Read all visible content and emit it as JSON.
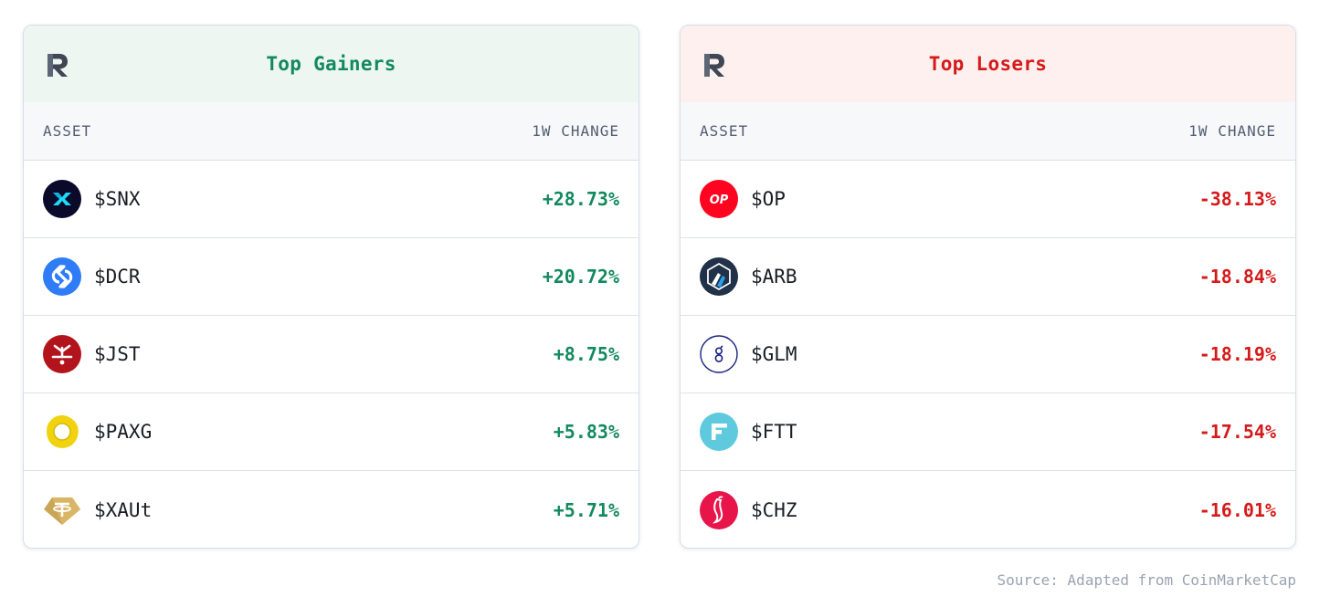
{
  "gainers": {
    "title": "Top Gainers",
    "asset_header": "ASSET",
    "change_header": "1W CHANGE",
    "accent_color": "#13895f",
    "header_bg": "#eef6f2",
    "rows": [
      {
        "symbol": "$SNX",
        "change": "+28.73%",
        "icon": "synthetix-icon"
      },
      {
        "symbol": "$DCR",
        "change": "+20.72%",
        "icon": "decred-icon"
      },
      {
        "symbol": "$JST",
        "change": "+8.75%",
        "icon": "just-icon"
      },
      {
        "symbol": "$PAXG",
        "change": "+5.83%",
        "icon": "pax-gold-icon"
      },
      {
        "symbol": "$XAUt",
        "change": "+5.71%",
        "icon": "tether-gold-icon"
      }
    ]
  },
  "losers": {
    "title": "Top Losers",
    "asset_header": "ASSET",
    "change_header": "1W CHANGE",
    "accent_color": "#d51a1a",
    "header_bg": "#fdf0ef",
    "rows": [
      {
        "symbol": "$OP",
        "change": "-38.13%",
        "icon": "optimism-icon"
      },
      {
        "symbol": "$ARB",
        "change": "-18.84%",
        "icon": "arbitrum-icon"
      },
      {
        "symbol": "$GLM",
        "change": "-18.19%",
        "icon": "golem-icon"
      },
      {
        "symbol": "$FTT",
        "change": "-17.54%",
        "icon": "ftx-token-icon"
      },
      {
        "symbol": "$CHZ",
        "change": "-16.01%",
        "icon": "chiliz-icon"
      }
    ]
  },
  "source": "Source: Adapted from CoinMarketCap"
}
